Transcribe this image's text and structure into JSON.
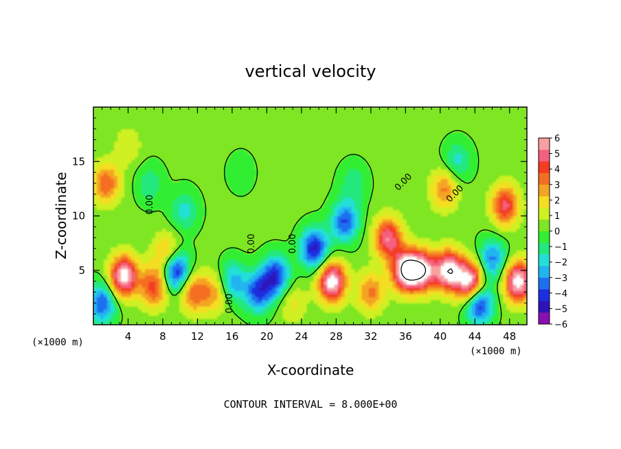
{
  "chart_data": {
    "type": "heatmap",
    "title": "vertical velocity",
    "xlabel": "X-coordinate",
    "ylabel": "Z-coordinate",
    "x_units": "(×1000 m)",
    "y_units": "(×1000 m)",
    "xlim": [
      0,
      50
    ],
    "ylim": [
      0,
      20
    ],
    "x_ticks": [
      4,
      8,
      12,
      16,
      20,
      24,
      28,
      32,
      36,
      40,
      44,
      48
    ],
    "y_ticks": [
      5,
      10,
      15
    ],
    "colorbar": {
      "min": -6,
      "max": 6,
      "ticks": [
        6,
        5,
        4,
        3,
        2,
        1,
        0,
        -1,
        -2,
        -3,
        -4,
        -5,
        -6
      ],
      "colors": [
        "#8a0fb0",
        "#2f12b8",
        "#1a2fe0",
        "#1e6ff0",
        "#22b4f0",
        "#22e0d8",
        "#22e87e",
        "#33ee33",
        "#7ee622",
        "#cff022",
        "#f4de22",
        "#f4a422",
        "#f46e22",
        "#f43c22",
        "#f46080",
        "#f8a0a0"
      ]
    },
    "contour_labels": [
      "0.00",
      "0.00",
      "0.00",
      "0.00",
      "0.00",
      "0.00"
    ],
    "contour_interval_text": "CONTOUR INTERVAL = 8.000E+00",
    "features": [
      {
        "x": 3.5,
        "z": 4.5,
        "w": 6.5
      },
      {
        "x": 1.5,
        "z": 13,
        "w": 3.5
      },
      {
        "x": 7,
        "z": 3.5,
        "w": 4
      },
      {
        "x": 9.5,
        "z": 5,
        "w": -5.5
      },
      {
        "x": 11.5,
        "z": 3,
        "w": 3.5
      },
      {
        "x": 8.5,
        "z": 6.5,
        "w": 3
      },
      {
        "x": 1,
        "z": 2,
        "w": -4
      },
      {
        "x": 6.5,
        "z": 13,
        "w": -1.5
      },
      {
        "x": 10.5,
        "z": 10.5,
        "w": -2
      },
      {
        "x": 14,
        "z": 3,
        "w": 2.5
      },
      {
        "x": 16,
        "z": 4,
        "w": -3
      },
      {
        "x": 19,
        "z": 3,
        "w": -4
      },
      {
        "x": 21,
        "z": 4.5,
        "w": -4.5
      },
      {
        "x": 23,
        "z": 2,
        "w": 1.5
      },
      {
        "x": 25.5,
        "z": 7,
        "w": -5
      },
      {
        "x": 29,
        "z": 9.5,
        "w": -4
      },
      {
        "x": 27.5,
        "z": 4,
        "w": 6.5
      },
      {
        "x": 32,
        "z": 3,
        "w": 3
      },
      {
        "x": 36,
        "z": 5,
        "w": 7
      },
      {
        "x": 34,
        "z": 8,
        "w": 5
      },
      {
        "x": 38,
        "z": 5,
        "w": 6
      },
      {
        "x": 41,
        "z": 5,
        "w": 6.5
      },
      {
        "x": 43.5,
        "z": 4,
        "w": 6.5
      },
      {
        "x": 44.5,
        "z": 2,
        "w": -5
      },
      {
        "x": 46,
        "z": 6,
        "w": -3.5
      },
      {
        "x": 47.5,
        "z": 11,
        "w": 4.5
      },
      {
        "x": 49,
        "z": 4,
        "w": 6.5
      },
      {
        "x": 40.5,
        "z": 12.5,
        "w": 3
      },
      {
        "x": 42,
        "z": 15,
        "w": -2
      },
      {
        "x": 17,
        "z": 14,
        "w": -0.8
      },
      {
        "x": 30,
        "z": 13,
        "w": -1.5
      },
      {
        "x": 4,
        "z": 16.5,
        "w": 1.2
      }
    ]
  }
}
